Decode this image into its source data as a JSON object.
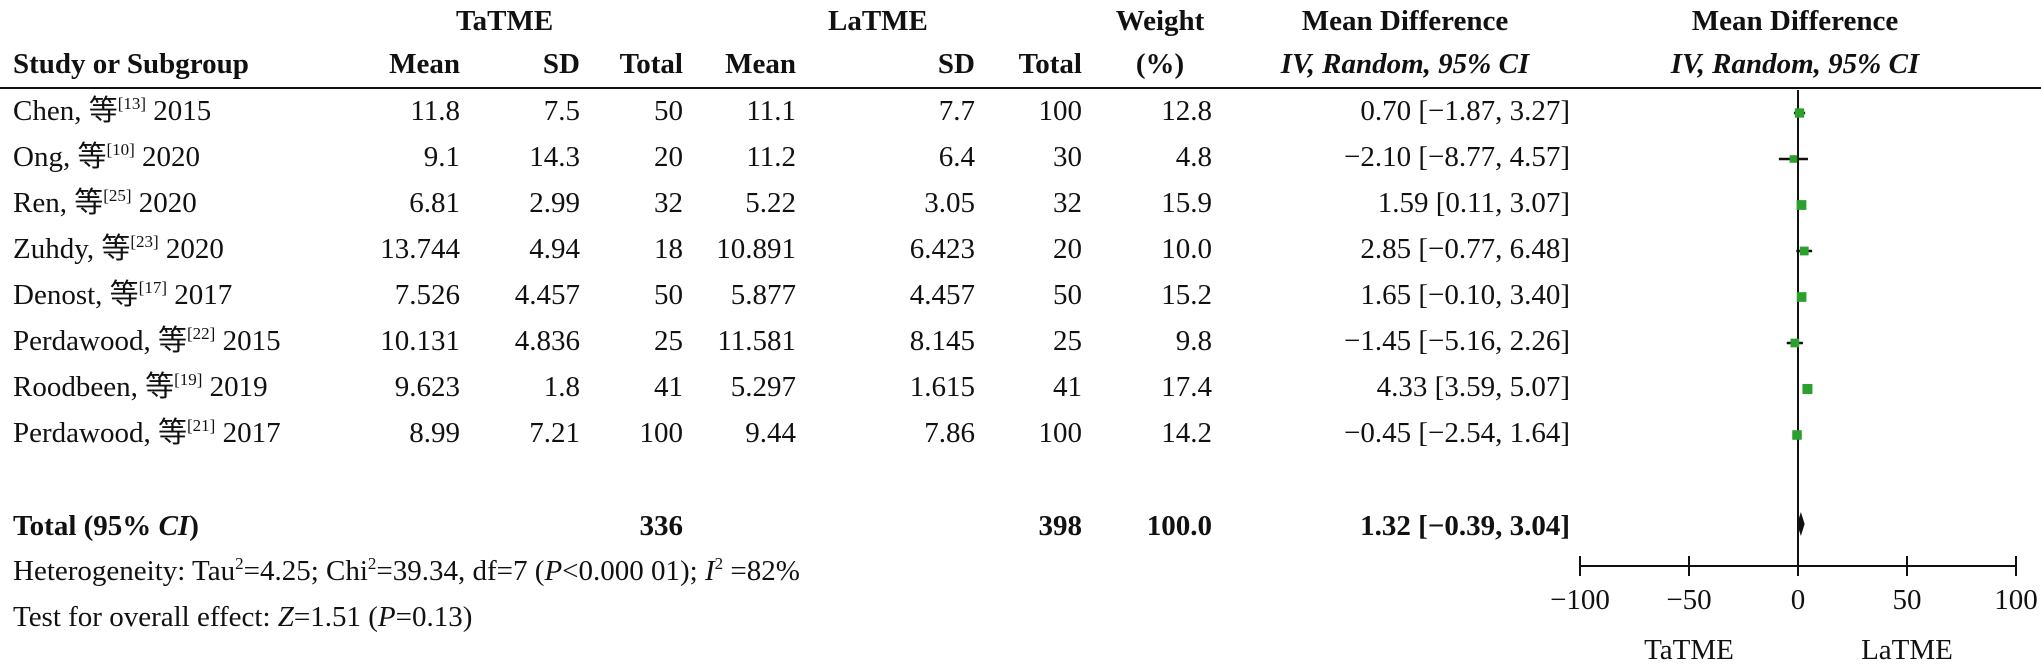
{
  "chart_data": {
    "type": "forest",
    "headers": {
      "group_left": "TaTME",
      "group_right": "LaTME",
      "weight_top": "Weight",
      "weight_bottom": "(%)",
      "md_top": "Mean Difference",
      "md_bottom": "IV, Random, 95% CI",
      "plot_top": "Mean Difference",
      "plot_bottom": "IV, Random, 95% CI",
      "study": "Study or Subgroup",
      "mean": "Mean",
      "sd": "SD",
      "total": "Total"
    },
    "studies": [
      {
        "name": "Chen, 等",
        "ref": "[13]",
        "year": "2015",
        "ta_mean": "11.8",
        "ta_sd": "7.5",
        "ta_total": "50",
        "la_mean": "11.1",
        "la_sd": "7.7",
        "la_total": "100",
        "weight": "12.8",
        "ci_text": "0.70 [−1.87, 3.27]",
        "md": 0.7,
        "lo": -1.87,
        "hi": 3.27
      },
      {
        "name": "Ong, 等",
        "ref": "[10]",
        "year": "2020",
        "ta_mean": "9.1",
        "ta_sd": "14.3",
        "ta_total": "20",
        "la_mean": "11.2",
        "la_sd": "6.4",
        "la_total": "30",
        "weight": "4.8",
        "ci_text": "−2.10 [−8.77, 4.57]",
        "md": -2.1,
        "lo": -8.77,
        "hi": 4.57
      },
      {
        "name": "Ren, 等",
        "ref": "[25]",
        "year": "2020",
        "ta_mean": "6.81",
        "ta_sd": "2.99",
        "ta_total": "32",
        "la_mean": "5.22",
        "la_sd": "3.05",
        "la_total": "32",
        "weight": "15.9",
        "ci_text": "1.59 [0.11, 3.07]",
        "md": 1.59,
        "lo": 0.11,
        "hi": 3.07
      },
      {
        "name": "Zuhdy, 等",
        "ref": "[23]",
        "year": "2020",
        "ta_mean": "13.744",
        "ta_sd": "4.94",
        "ta_total": "18",
        "la_mean": "10.891",
        "la_sd": "6.423",
        "la_total": "20",
        "weight": "10.0",
        "ci_text": "2.85 [−0.77, 6.48]",
        "md": 2.85,
        "lo": -0.77,
        "hi": 6.48
      },
      {
        "name": "Denost, 等",
        "ref": "[17]",
        "year": "2017",
        "ta_mean": "7.526",
        "ta_sd": "4.457",
        "ta_total": "50",
        "la_mean": "5.877",
        "la_sd": "4.457",
        "la_total": "50",
        "weight": "15.2",
        "ci_text": "1.65 [−0.10, 3.40]",
        "md": 1.65,
        "lo": -0.1,
        "hi": 3.4
      },
      {
        "name": "Perdawood, 等",
        "ref": "[22]",
        "year": "2015",
        "ta_mean": "10.131",
        "ta_sd": "4.836",
        "ta_total": "25",
        "la_mean": "11.581",
        "la_sd": "8.145",
        "la_total": "25",
        "weight": "9.8",
        "ci_text": "−1.45 [−5.16, 2.26]",
        "md": -1.45,
        "lo": -5.16,
        "hi": 2.26
      },
      {
        "name": "Roodbeen, 等",
        "ref": "[19]",
        "year": "2019",
        "ta_mean": "9.623",
        "ta_sd": "1.8",
        "ta_total": "41",
        "la_mean": "5.297",
        "la_sd": "1.615",
        "la_total": "41",
        "weight": "17.4",
        "ci_text": "4.33 [3.59, 5.07]",
        "md": 4.33,
        "lo": 3.59,
        "hi": 5.07
      },
      {
        "name": "Perdawood, 等",
        "ref": "[21]",
        "year": "2017",
        "ta_mean": "8.99",
        "ta_sd": "7.21",
        "ta_total": "100",
        "la_mean": "9.44",
        "la_sd": "7.86",
        "la_total": "100",
        "weight": "14.2",
        "ci_text": "−0.45 [−2.54, 1.64]",
        "md": -0.45,
        "lo": -2.54,
        "hi": 1.64
      }
    ],
    "total": {
      "label": "Total (95% ",
      "label_ci": "CI",
      "label_end": ")",
      "ta_total": "336",
      "la_total": "398",
      "weight": "100.0",
      "ci_text": "1.32 [−0.39, 3.04]",
      "md": 1.32,
      "lo": -0.39,
      "hi": 3.04
    },
    "heterogeneity": {
      "text1": "Heterogeneity: Tau",
      "text2": "=4.25; Chi",
      "text3": "=39.34, df=7 (",
      "p_sym": "P",
      "text4": "<0.000 01); ",
      "i_sym": "I",
      "text5": " =82%",
      "sup": "2"
    },
    "overall": {
      "text1": "Test for overall effect: ",
      "z_sym": "Z",
      "text2": "=1.51 (",
      "p_sym": "P",
      "text3": "=0.13)"
    },
    "axis": {
      "xlim": [
        -100,
        100
      ],
      "ticks": [
        -100,
        -50,
        0,
        50,
        100
      ],
      "tick_labels": [
        "−100",
        "−50",
        "0",
        "50",
        "100"
      ],
      "favours_left": "TaTME",
      "favours_right": "LaTME"
    },
    "colors": {
      "square": "#2ca02c",
      "line": "#111111",
      "diamond": "#111111"
    }
  }
}
